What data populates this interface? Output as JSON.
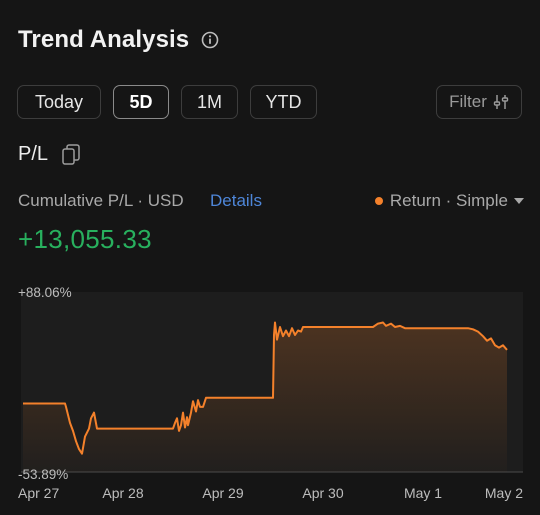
{
  "header": {
    "title": "Trend Analysis",
    "info_icon": "info-circle-icon"
  },
  "tabs": [
    {
      "label": "Today",
      "active": false
    },
    {
      "label": "5D",
      "active": true
    },
    {
      "label": "1M",
      "active": false
    },
    {
      "label": "YTD",
      "active": false
    }
  ],
  "filter": {
    "label": "Filter",
    "icon": "sliders-icon"
  },
  "pl": {
    "label": "P/L",
    "icon": "copy-icon"
  },
  "summary": {
    "label": "Cumulative P/L · USD",
    "details_link": "Details",
    "mode": "Return · Simple",
    "mode_color": "#f4812b",
    "value": "+13,055.33",
    "value_color": "#28b05e"
  },
  "chart_data": {
    "type": "area",
    "line_color": "#f4812b",
    "ylim": [
      -53.89,
      88.06
    ],
    "y_tick_labels": [
      "+88.06%",
      "-53.89%"
    ],
    "x_tick_labels": [
      "Apr 27",
      "Apr 28",
      "Apr 29",
      "Apr 30",
      "May 1",
      "May 2"
    ],
    "x_range": [
      0,
      5
    ],
    "grid": false,
    "series": [
      {
        "x": [
          0,
          0.22,
          0.42,
          0.43,
          0.47,
          0.5,
          0.53,
          0.56,
          0.59,
          0.62,
          0.66,
          0.68,
          0.71,
          0.74,
          0.76,
          0.78,
          0.8,
          1.0,
          1.25,
          1.5,
          1.52,
          1.54,
          1.56,
          1.58,
          1.6,
          1.62,
          1.64,
          1.65,
          1.68,
          1.7,
          1.73,
          1.75,
          1.77,
          1.8,
          1.83,
          2.2,
          2.5,
          2.51,
          2.52,
          2.54,
          2.57,
          2.6,
          2.63,
          2.66,
          2.69,
          2.72,
          2.75,
          2.78,
          2.8,
          3.0,
          3.25,
          3.5,
          3.55,
          3.6,
          3.63,
          3.68,
          3.72,
          3.77,
          3.82,
          4.0,
          4.25,
          4.45,
          4.5,
          4.55,
          4.6,
          4.64,
          4.68,
          4.72,
          4.76,
          4.8,
          4.84
        ],
        "y": [
          0,
          0,
          0,
          -3,
          -17,
          -24,
          -33,
          -40,
          -44,
          -29,
          -22,
          -13,
          -8,
          -22,
          -22,
          -22,
          -22,
          -22,
          -22,
          -22,
          -17,
          -13,
          -24,
          -19,
          -8,
          -21,
          -12,
          -19,
          -8,
          2,
          -7,
          3,
          -3,
          -3,
          5,
          5,
          5,
          60,
          71,
          56,
          67,
          59,
          64,
          59,
          66,
          60,
          64,
          63,
          67,
          67,
          67,
          67,
          70,
          71,
          68,
          70,
          67,
          68,
          66,
          66,
          66,
          66,
          65,
          63,
          59,
          55,
          57,
          51,
          49,
          51,
          47
        ]
      }
    ]
  }
}
